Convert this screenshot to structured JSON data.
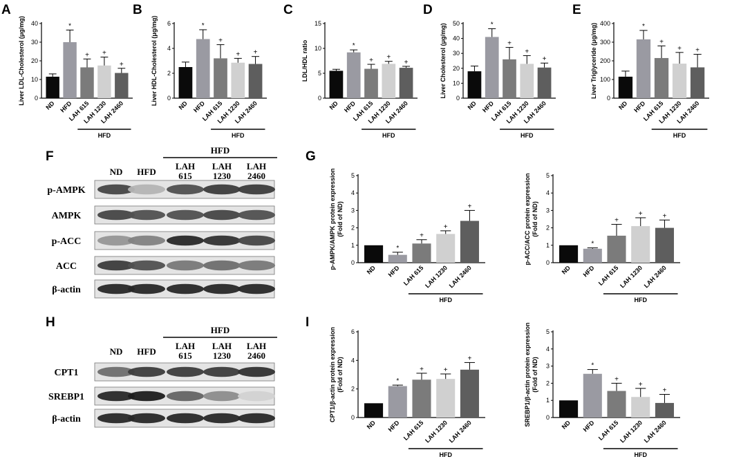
{
  "colors": {
    "ND": "#0a0a0a",
    "HFD": "#9a9aa2",
    "LAH 615": "#7b7b7b",
    "LAH 1230": "#d0d0d0",
    "LAH 2460": "#5e5e5e"
  },
  "chart_data": [
    {
      "id": "A",
      "type": "bar",
      "categories": [
        "ND",
        "HFD",
        "LAH 615",
        "LAH 1230",
        "LAH 2460"
      ],
      "values": [
        11.5,
        30,
        16.5,
        17.5,
        13.5
      ],
      "errors": [
        1.5,
        6.5,
        4.5,
        4.5,
        2.5
      ],
      "marks": [
        "",
        "*",
        "+",
        "+",
        "+"
      ],
      "ylabel": "Liver LDL-Cholesterol (μg/mg)",
      "ylim": [
        0,
        40
      ],
      "yticks": [
        "0",
        "10",
        "20",
        "30",
        "40"
      ],
      "group_label": "HFD"
    },
    {
      "id": "B",
      "type": "bar",
      "categories": [
        "ND",
        "HFD",
        "LAH 615",
        "LAH 1230",
        "LAH 2460"
      ],
      "values": [
        2.5,
        4.75,
        3.2,
        2.85,
        2.75
      ],
      "errors": [
        0.4,
        0.75,
        1.1,
        0.35,
        0.6
      ],
      "marks": [
        "",
        "*",
        "+",
        "+",
        "+"
      ],
      "ylabel": "Liver HDL-Cholesterol (μg/mg)",
      "ylim": [
        0,
        6
      ],
      "yticks": [
        "0",
        "2",
        "4",
        "6"
      ],
      "group_label": "HFD"
    },
    {
      "id": "C",
      "type": "bar",
      "categories": [
        "ND",
        "HFD",
        "LAH 615",
        "LAH 1230",
        "LAH 2460"
      ],
      "values": [
        5.5,
        9.2,
        5.9,
        6.9,
        6.1
      ],
      "errors": [
        0.3,
        0.5,
        0.9,
        0.5,
        0.3
      ],
      "marks": [
        "",
        "*",
        "+",
        "+",
        "+"
      ],
      "ylabel": "LDL/HDL ratio",
      "ylim": [
        0,
        15
      ],
      "yticks": [
        "0",
        "5",
        "10",
        "15"
      ],
      "group_label": "HFD"
    },
    {
      "id": "D",
      "type": "bar",
      "categories": [
        "ND",
        "HFD",
        "LAH 615",
        "LAH 1230",
        "LAH 2460"
      ],
      "values": [
        18,
        41,
        26,
        23,
        20.5
      ],
      "errors": [
        3.5,
        5.5,
        8,
        5.5,
        3
      ],
      "marks": [
        "",
        "*",
        "+",
        "+",
        "+"
      ],
      "ylabel": "Liver Cholesterol (μg/mg)",
      "ylim": [
        0,
        50
      ],
      "yticks": [
        "0",
        "10",
        "20",
        "30",
        "40",
        "50"
      ],
      "group_label": "HFD"
    },
    {
      "id": "E",
      "type": "bar",
      "categories": [
        "ND",
        "HFD",
        "LAH 615",
        "LAH 1230",
        "LAH 2460"
      ],
      "values": [
        115,
        315,
        215,
        185,
        165
      ],
      "errors": [
        30,
        48,
        65,
        60,
        70
      ],
      "marks": [
        "",
        "*",
        "+",
        "+",
        "+"
      ],
      "ylabel": "Liver Triglyceride (μg/mg)",
      "ylim": [
        0,
        400
      ],
      "yticks": [
        "0",
        "100",
        "200",
        "300",
        "400"
      ],
      "group_label": "HFD"
    },
    {
      "id": "G1",
      "type": "bar",
      "categories": [
        "ND",
        "HFD",
        "LAH 615",
        "LAH 1230",
        "LAH 2460"
      ],
      "values": [
        1.0,
        0.45,
        1.1,
        1.65,
        2.4
      ],
      "errors": [
        0,
        0.15,
        0.22,
        0.18,
        0.6
      ],
      "marks": [
        "",
        "*",
        "+",
        "+",
        "+"
      ],
      "ylabel": "p-AMPK/AMPK protein expression",
      "ylabel2": "(Fold of ND)",
      "ylim": [
        0,
        5
      ],
      "yticks": [
        "0",
        "1",
        "2",
        "3",
        "4",
        "5"
      ],
      "group_label": "HFD"
    },
    {
      "id": "G2",
      "type": "bar",
      "categories": [
        "ND",
        "HFD",
        "LAH 615",
        "LAH 1230",
        "LAH 2460"
      ],
      "values": [
        1.0,
        0.8,
        1.55,
        2.1,
        2.0
      ],
      "errors": [
        0,
        0.05,
        0.65,
        0.48,
        0.45
      ],
      "marks": [
        "",
        "*",
        "+",
        "+",
        "+"
      ],
      "ylabel": "p-ACC/ACC protein expression",
      "ylabel2": "(Fold of ND)",
      "ylim": [
        0,
        5
      ],
      "yticks": [
        "0",
        "1",
        "2",
        "3",
        "4",
        "5"
      ],
      "group_label": "HFD"
    },
    {
      "id": "I1",
      "type": "bar",
      "categories": [
        "ND",
        "HFD",
        "LAH 615",
        "LAH 1230",
        "LAH 2460"
      ],
      "values": [
        1.0,
        2.2,
        2.65,
        2.7,
        3.35
      ],
      "errors": [
        0,
        0.07,
        0.45,
        0.35,
        0.5
      ],
      "marks": [
        "",
        "*",
        "+",
        "+",
        "+"
      ],
      "ylabel": "CPT1/β-actin protein expression",
      "ylabel2": "(Fold of ND)",
      "ylim": [
        0,
        6
      ],
      "yticks": [
        "0",
        "2",
        "4",
        "6"
      ],
      "group_label": "HFD"
    },
    {
      "id": "I2",
      "type": "bar",
      "categories": [
        "ND",
        "HFD",
        "LAH 615",
        "LAH 1230",
        "LAH 2460"
      ],
      "values": [
        1.0,
        2.55,
        1.55,
        1.2,
        0.85
      ],
      "errors": [
        0,
        0.25,
        0.45,
        0.5,
        0.5
      ],
      "marks": [
        "",
        "*",
        "+",
        "+",
        "+"
      ],
      "ylabel": "SREBP1/β-actin protein expression",
      "ylabel2": "(Fold of ND)",
      "ylim": [
        0,
        5
      ],
      "yticks": [
        "0",
        "1",
        "2",
        "3",
        "4",
        "5"
      ],
      "group_label": "HFD"
    }
  ],
  "panel_labels": [
    "A",
    "B",
    "C",
    "D",
    "E",
    "F",
    "G",
    "H",
    "I"
  ],
  "blots": {
    "F": {
      "lanes": [
        "ND",
        "HFD",
        "LAH\n615",
        "LAH\n1230",
        "LAH\n2460"
      ],
      "group_label": "HFD",
      "rows": [
        {
          "label": "p-AMPK",
          "intensity": [
            0.75,
            0.2,
            0.7,
            0.8,
            0.8
          ]
        },
        {
          "label": "AMPK",
          "intensity": [
            0.75,
            0.7,
            0.7,
            0.75,
            0.7
          ]
        },
        {
          "label": "p-ACC",
          "intensity": [
            0.35,
            0.45,
            0.9,
            0.85,
            0.75
          ]
        },
        {
          "label": "ACC",
          "intensity": [
            0.8,
            0.7,
            0.5,
            0.55,
            0.5
          ]
        },
        {
          "label": "β-actin",
          "intensity": [
            0.9,
            0.9,
            0.9,
            0.9,
            0.9
          ]
        }
      ]
    },
    "H": {
      "lanes": [
        "ND",
        "HFD",
        "LAH\n615",
        "LAH\n1230",
        "LAH\n2460"
      ],
      "group_label": "HFD",
      "rows": [
        {
          "label": "CPT1",
          "intensity": [
            0.55,
            0.8,
            0.8,
            0.8,
            0.85
          ]
        },
        {
          "label": "SREBP1",
          "intensity": [
            0.9,
            0.95,
            0.6,
            0.4,
            0.05
          ]
        },
        {
          "label": "β-actin",
          "intensity": [
            0.9,
            0.9,
            0.9,
            0.9,
            0.9
          ]
        }
      ]
    }
  }
}
